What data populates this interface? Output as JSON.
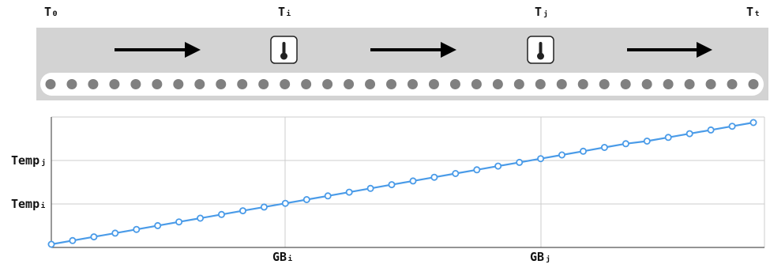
{
  "timeline": {
    "labels": {
      "t0": "T₀",
      "ti": "Tᵢ",
      "tj": "Tⱼ",
      "tt": "Tₜ"
    },
    "dot_count": 34,
    "icons": [
      "thermometer-icon",
      "thermometer-icon"
    ],
    "colors": {
      "band": "#d3d3d3",
      "track": "#ffffff",
      "dot": "#808080",
      "arrow": "#000000"
    }
  },
  "chart_data": {
    "type": "line",
    "ylabels": [
      "Tempⱼ",
      "Tempᵢ"
    ],
    "xlabels": [
      "GBᵢ",
      "GBⱼ"
    ],
    "series": [
      {
        "values": [
          0,
          1,
          2,
          3,
          4,
          5,
          6,
          7,
          8,
          9,
          10,
          11,
          12,
          13,
          14,
          15,
          16,
          17,
          18,
          19,
          20,
          21,
          22,
          23,
          24,
          25,
          26,
          27,
          27.7,
          28.7,
          29.7,
          30.7,
          31.7,
          32.7
        ]
      }
    ],
    "grid": true,
    "colors": {
      "line": "#4a9be8",
      "grid": "#cccccc",
      "axis": "#555555"
    }
  }
}
